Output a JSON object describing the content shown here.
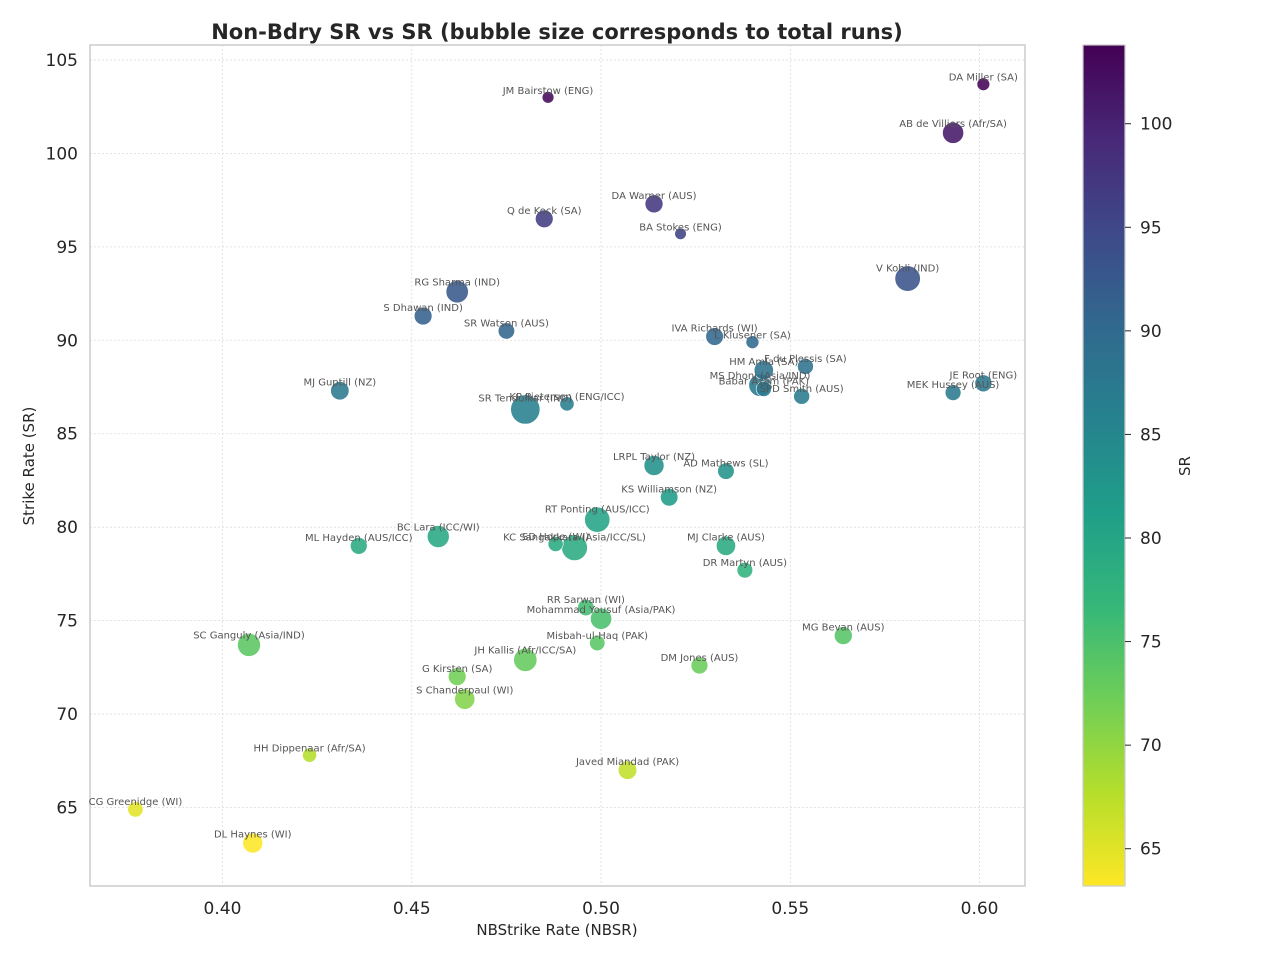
{
  "chart_data": {
    "type": "scatter",
    "title": "Non-Bdry SR vs SR (bubble size corresponds to total runs)",
    "xlabel": "NBStrike Rate (NBSR)",
    "ylabel": "Strike Rate (SR)",
    "xlim": [
      0.365,
      0.612
    ],
    "ylim": [
      60.8,
      105.8
    ],
    "xticks": [
      0.4,
      0.45,
      0.5,
      0.55,
      0.6
    ],
    "xtick_labels": [
      "0.40",
      "0.45",
      "0.50",
      "0.55",
      "0.60"
    ],
    "yticks": [
      65,
      70,
      75,
      80,
      85,
      90,
      95,
      100,
      105
    ],
    "ytick_labels": [
      "65",
      "70",
      "75",
      "80",
      "85",
      "90",
      "95",
      "100",
      "105"
    ],
    "grid": true,
    "colorbar": {
      "label": "SR",
      "colormap": "viridis",
      "range": [
        63.2,
        103.8
      ],
      "ticks": [
        65,
        70,
        75,
        80,
        85,
        90,
        95,
        100
      ],
      "tick_labels": [
        "65",
        "70",
        "75",
        "80",
        "85",
        "90",
        "95",
        "100"
      ],
      "colors": [
        "#fde725",
        "#b5de2b",
        "#6ece58",
        "#35b779",
        "#1f9e89",
        "#26828e",
        "#31688e",
        "#3e4989",
        "#482878",
        "#440154"
      ]
    },
    "points": [
      {
        "name": "DA Miller (SA)",
        "nbsr": 0.601,
        "sr": 103.7,
        "runs": 3500
      },
      {
        "name": "JM Bairstow (ENG)",
        "nbsr": 0.486,
        "sr": 103.0,
        "runs": 3000
      },
      {
        "name": "AB de Villiers (Afr/SA)",
        "nbsr": 0.593,
        "sr": 101.1,
        "runs": 9600
      },
      {
        "name": "DA Warner (AUS)",
        "nbsr": 0.514,
        "sr": 97.3,
        "runs": 6900
      },
      {
        "name": "Q de Kock (SA)",
        "nbsr": 0.485,
        "sr": 96.5,
        "runs": 6800
      },
      {
        "name": "BA Stokes (ENG)",
        "nbsr": 0.521,
        "sr": 95.7,
        "runs": 2900
      },
      {
        "name": "V Kohli (IND)",
        "nbsr": 0.581,
        "sr": 93.3,
        "runs": 13900
      },
      {
        "name": "RG Sharma (IND)",
        "nbsr": 0.462,
        "sr": 92.6,
        "runs": 10700
      },
      {
        "name": "S Dhawan (IND)",
        "nbsr": 0.453,
        "sr": 91.3,
        "runs": 6800
      },
      {
        "name": "SR Watson (AUS)",
        "nbsr": 0.475,
        "sr": 90.5,
        "runs": 5800
      },
      {
        "name": "IVA Richards (WI)",
        "nbsr": 0.53,
        "sr": 90.2,
        "runs": 6700
      },
      {
        "name": "L Klusener (SA)",
        "nbsr": 0.54,
        "sr": 89.9,
        "runs": 3600
      },
      {
        "name": "F du Plessis (SA)",
        "nbsr": 0.554,
        "sr": 88.6,
        "runs": 5500
      },
      {
        "name": "HM Amla (SA)",
        "nbsr": 0.543,
        "sr": 88.4,
        "runs": 8000
      },
      {
        "name": "MS Dhoni (Asia/IND)",
        "nbsr": 0.542,
        "sr": 87.6,
        "runs": 10800
      },
      {
        "name": "JE Root (ENG)",
        "nbsr": 0.601,
        "sr": 87.7,
        "runs": 6200
      },
      {
        "name": "Babar Azam (PAK)",
        "nbsr": 0.543,
        "sr": 87.4,
        "runs": 5000
      },
      {
        "name": "MEK Hussey (AUS)",
        "nbsr": 0.593,
        "sr": 87.2,
        "runs": 5400
      },
      {
        "name": "SPD Smith (AUS)",
        "nbsr": 0.553,
        "sr": 87.0,
        "runs": 5500
      },
      {
        "name": "MJ Guptill (NZ)",
        "nbsr": 0.431,
        "sr": 87.3,
        "runs": 7300
      },
      {
        "name": "KP Pietersen (ENG/ICC)",
        "nbsr": 0.491,
        "sr": 86.6,
        "runs": 4400
      },
      {
        "name": "SR Tendulkar (IND)",
        "nbsr": 0.48,
        "sr": 86.3,
        "runs": 18400
      },
      {
        "name": "LRPL Taylor (NZ)",
        "nbsr": 0.514,
        "sr": 83.3,
        "runs": 8600
      },
      {
        "name": "AD Mathews (SL)",
        "nbsr": 0.533,
        "sr": 83.0,
        "runs": 5900
      },
      {
        "name": "KS Williamson (NZ)",
        "nbsr": 0.518,
        "sr": 81.6,
        "runs": 6600
      },
      {
        "name": "RT Ponting (AUS/ICC)",
        "nbsr": 0.499,
        "sr": 80.4,
        "runs": 13700
      },
      {
        "name": "BC Lara (ICC/WI)",
        "nbsr": 0.457,
        "sr": 79.5,
        "runs": 10400
      },
      {
        "name": "ML Hayden (AUS/ICC)",
        "nbsr": 0.436,
        "sr": 79.0,
        "runs": 6100
      },
      {
        "name": "SD Hope (WI)",
        "nbsr": 0.488,
        "sr": 79.1,
        "runs": 4900
      },
      {
        "name": "KC Sangakkara (Asia/ICC/SL)",
        "nbsr": 0.493,
        "sr": 78.9,
        "runs": 14200
      },
      {
        "name": "MJ Clarke (AUS)",
        "nbsr": 0.533,
        "sr": 79.0,
        "runs": 8000
      },
      {
        "name": "DR Martyn (AUS)",
        "nbsr": 0.538,
        "sr": 77.7,
        "runs": 5300
      },
      {
        "name": "RR Sarwan (WI)",
        "nbsr": 0.496,
        "sr": 75.7,
        "runs": 5800
      },
      {
        "name": "Mohammad Yousuf (Asia/PAK)",
        "nbsr": 0.5,
        "sr": 75.1,
        "runs": 9700
      },
      {
        "name": "MG Bevan (AUS)",
        "nbsr": 0.564,
        "sr": 74.2,
        "runs": 6900
      },
      {
        "name": "SC Ganguly (Asia/IND)",
        "nbsr": 0.407,
        "sr": 73.7,
        "runs": 11400
      },
      {
        "name": "Misbah-ul-Haq (PAK)",
        "nbsr": 0.499,
        "sr": 73.8,
        "runs": 5100
      },
      {
        "name": "JH Kallis (Afr/ICC/SA)",
        "nbsr": 0.48,
        "sr": 72.9,
        "runs": 11600
      },
      {
        "name": "DM Jones (AUS)",
        "nbsr": 0.526,
        "sr": 72.6,
        "runs": 6100
      },
      {
        "name": "G Kirsten (SA)",
        "nbsr": 0.462,
        "sr": 72.0,
        "runs": 6800
      },
      {
        "name": "S Chanderpaul (WI)",
        "nbsr": 0.464,
        "sr": 70.8,
        "runs": 8800
      },
      {
        "name": "HH Dippenaar (Afr/SA)",
        "nbsr": 0.423,
        "sr": 67.8,
        "runs": 4300
      },
      {
        "name": "Javed Miandad (PAK)",
        "nbsr": 0.507,
        "sr": 67.0,
        "runs": 7400
      },
      {
        "name": "CG Greenidge (WI)",
        "nbsr": 0.377,
        "sr": 64.9,
        "runs": 5100
      },
      {
        "name": "DL Haynes (WI)",
        "nbsr": 0.408,
        "sr": 63.1,
        "runs": 8600
      }
    ]
  }
}
